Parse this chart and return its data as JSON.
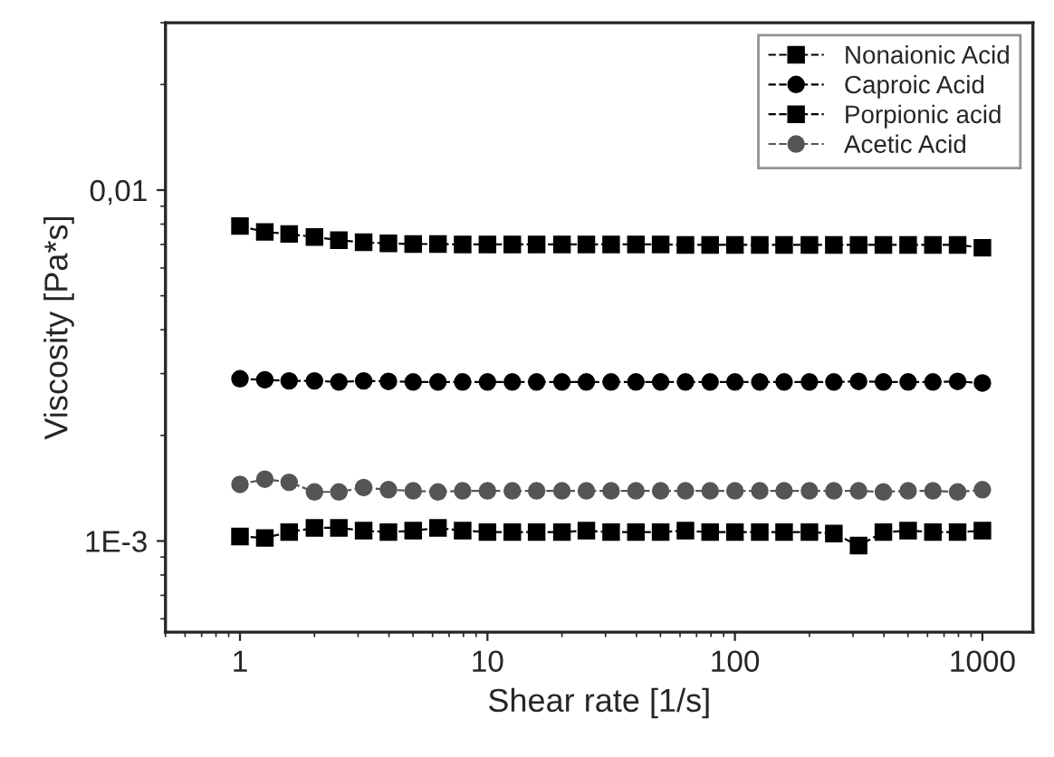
{
  "chart_data": {
    "type": "line",
    "xlabel": "Shear rate [1/s]",
    "ylabel": "Viscosity [Pa*s]",
    "log": "xy",
    "xlim": [
      0.5,
      1600
    ],
    "xticks": [
      1,
      10,
      100,
      1000
    ],
    "ylim": [
      0.00055,
      0.03
    ],
    "yticks": [
      {
        "value": 0.001,
        "label": "1E-3"
      },
      {
        "value": 0.01,
        "label": "0,01"
      }
    ],
    "grid": false,
    "legend": "top right",
    "line_style": "dashed",
    "x": [
      1,
      1.26,
      1.58,
      2,
      2.51,
      3.16,
      3.98,
      5.01,
      6.31,
      7.94,
      10,
      12.6,
      15.8,
      20,
      25.1,
      31.6,
      39.8,
      50.1,
      63.1,
      79.4,
      100,
      126,
      158,
      200,
      251,
      316,
      398,
      501,
      631,
      794,
      1000
    ],
    "series": [
      {
        "name": "Nonaionic Acid",
        "color": "#000000",
        "marker": "square",
        "values": [
          0.0079,
          0.0076,
          0.0075,
          0.00735,
          0.0072,
          0.0071,
          0.00705,
          0.00702,
          0.00702,
          0.007,
          0.007,
          0.007,
          0.007,
          0.007,
          0.007,
          0.007,
          0.007,
          0.007,
          0.00698,
          0.00698,
          0.00698,
          0.00698,
          0.00698,
          0.00698,
          0.00698,
          0.00698,
          0.00698,
          0.00698,
          0.00698,
          0.00698,
          0.00685
        ]
      },
      {
        "name": "Caproic Acid",
        "color": "#000000",
        "marker": "circle",
        "values": [
          0.0029,
          0.00288,
          0.00286,
          0.00286,
          0.00284,
          0.00286,
          0.00285,
          0.00284,
          0.00284,
          0.00284,
          0.00284,
          0.00284,
          0.00284,
          0.00284,
          0.00284,
          0.00284,
          0.00284,
          0.00284,
          0.00284,
          0.00284,
          0.00284,
          0.00284,
          0.00284,
          0.00284,
          0.00284,
          0.00285,
          0.00284,
          0.00284,
          0.00284,
          0.00285,
          0.00282
        ]
      },
      {
        "name": "Porpionic acid",
        "color": "#000000",
        "marker": "square",
        "values": [
          0.00103,
          0.00102,
          0.00106,
          0.00109,
          0.00109,
          0.00107,
          0.00106,
          0.00107,
          0.00109,
          0.00107,
          0.00106,
          0.00106,
          0.00106,
          0.00106,
          0.00107,
          0.00106,
          0.00106,
          0.00106,
          0.00107,
          0.00106,
          0.00106,
          0.00106,
          0.00106,
          0.00106,
          0.00105,
          0.00097,
          0.00106,
          0.00107,
          0.00106,
          0.00106,
          0.00107
        ]
      },
      {
        "name": "Acetic Acid",
        "color": "#555555",
        "marker": "circle",
        "values": [
          0.00145,
          0.0015,
          0.00147,
          0.00138,
          0.00138,
          0.00142,
          0.0014,
          0.00139,
          0.00138,
          0.00139,
          0.00139,
          0.00139,
          0.00139,
          0.00139,
          0.00139,
          0.00139,
          0.00139,
          0.00139,
          0.00139,
          0.00139,
          0.00139,
          0.00139,
          0.00139,
          0.00139,
          0.00139,
          0.00139,
          0.00138,
          0.00139,
          0.00139,
          0.00138,
          0.0014
        ]
      }
    ]
  }
}
